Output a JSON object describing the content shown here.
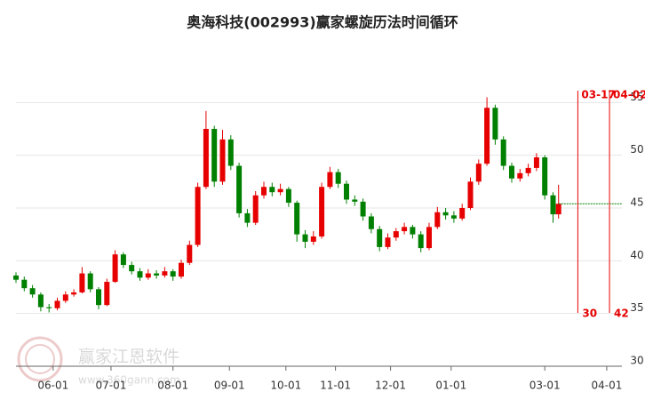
{
  "chart_data": {
    "type": "candlestick",
    "title": "奥海科技(002993)赢家螺旋历法时间循环",
    "watermark": {
      "brand": "赢家江恩软件",
      "url": "www.360gann.com"
    },
    "up_color": "#e60000",
    "down_color": "#008000",
    "x": [
      0,
      3,
      6,
      9,
      12,
      15,
      18,
      21,
      24,
      27,
      30,
      33,
      36,
      39,
      42,
      45,
      48,
      51,
      54,
      57,
      60,
      63,
      66,
      69,
      72,
      75,
      78,
      81,
      84,
      87,
      90,
      93,
      96,
      99,
      102,
      105,
      108,
      111,
      114,
      117,
      120,
      123,
      126,
      129,
      132,
      135,
      138,
      141,
      144,
      147,
      150,
      153,
      156,
      159,
      162,
      165,
      168,
      171,
      174,
      177,
      180,
      183,
      186,
      189,
      192,
      195,
      197
    ],
    "ohlc": [
      [
        38.6,
        38.9,
        37.9,
        38.2
      ],
      [
        38.2,
        38.5,
        37.1,
        37.4
      ],
      [
        37.4,
        37.7,
        36.5,
        36.8
      ],
      [
        36.8,
        37.0,
        35.2,
        35.6
      ],
      [
        35.6,
        35.9,
        35.1,
        35.5
      ],
      [
        35.5,
        36.5,
        35.3,
        36.2
      ],
      [
        36.2,
        37.1,
        36.0,
        36.8
      ],
      [
        36.8,
        37.3,
        36.6,
        37.0
      ],
      [
        37.0,
        39.4,
        36.9,
        38.8
      ],
      [
        38.8,
        39.0,
        37.0,
        37.3
      ],
      [
        37.3,
        37.5,
        35.4,
        35.8
      ],
      [
        35.8,
        38.3,
        35.7,
        38.0
      ],
      [
        38.0,
        41.0,
        37.9,
        40.6
      ],
      [
        40.6,
        40.8,
        39.3,
        39.6
      ],
      [
        39.6,
        39.9,
        38.7,
        39.0
      ],
      [
        39.0,
        39.3,
        38.1,
        38.4
      ],
      [
        38.4,
        39.2,
        38.2,
        38.8
      ],
      [
        38.8,
        39.1,
        38.3,
        38.6
      ],
      [
        38.6,
        39.4,
        38.4,
        39.0
      ],
      [
        39.0,
        39.2,
        38.1,
        38.5
      ],
      [
        38.5,
        40.1,
        38.3,
        39.8
      ],
      [
        39.8,
        41.9,
        39.6,
        41.5
      ],
      [
        41.5,
        47.4,
        41.3,
        47.0
      ],
      [
        47.0,
        54.2,
        46.8,
        52.5
      ],
      [
        52.5,
        52.8,
        47.0,
        47.5
      ],
      [
        47.5,
        52.4,
        47.2,
        51.5
      ],
      [
        51.5,
        51.9,
        48.6,
        49.0
      ],
      [
        49.0,
        49.3,
        44.1,
        44.5
      ],
      [
        44.5,
        44.9,
        43.2,
        43.6
      ],
      [
        43.6,
        46.6,
        43.4,
        46.2
      ],
      [
        46.2,
        47.5,
        45.9,
        47.0
      ],
      [
        47.0,
        47.4,
        46.1,
        46.5
      ],
      [
        46.5,
        47.3,
        46.2,
        46.8
      ],
      [
        46.8,
        47.0,
        45.1,
        45.5
      ],
      [
        45.5,
        45.7,
        41.8,
        42.5
      ],
      [
        42.5,
        42.9,
        41.2,
        41.8
      ],
      [
        41.8,
        42.8,
        41.5,
        42.3
      ],
      [
        42.3,
        47.4,
        42.1,
        47.0
      ],
      [
        47.0,
        48.9,
        46.8,
        48.4
      ],
      [
        48.4,
        48.7,
        46.9,
        47.3
      ],
      [
        47.3,
        47.6,
        45.4,
        45.8
      ],
      [
        45.8,
        46.2,
        45.2,
        45.6
      ],
      [
        45.6,
        45.9,
        43.8,
        44.2
      ],
      [
        44.2,
        44.5,
        42.6,
        43.0
      ],
      [
        43.0,
        43.3,
        40.9,
        41.3
      ],
      [
        41.3,
        42.6,
        41.1,
        42.2
      ],
      [
        42.2,
        43.1,
        41.9,
        42.8
      ],
      [
        42.8,
        43.6,
        42.5,
        43.2
      ],
      [
        43.2,
        43.4,
        42.1,
        42.5
      ],
      [
        42.5,
        42.8,
        40.8,
        41.2
      ],
      [
        41.2,
        43.6,
        41.0,
        43.2
      ],
      [
        43.2,
        45.1,
        43.0,
        44.6
      ],
      [
        44.6,
        45.0,
        43.9,
        44.3
      ],
      [
        44.3,
        44.7,
        43.6,
        44.0
      ],
      [
        44.0,
        45.4,
        43.8,
        45.0
      ],
      [
        45.0,
        47.9,
        44.8,
        47.5
      ],
      [
        47.5,
        49.6,
        47.2,
        49.2
      ],
      [
        49.2,
        55.5,
        49.0,
        54.5
      ],
      [
        54.5,
        54.8,
        51.0,
        51.5
      ],
      [
        51.5,
        51.8,
        48.6,
        49.0
      ],
      [
        49.0,
        49.3,
        47.4,
        47.8
      ],
      [
        47.8,
        48.7,
        47.5,
        48.3
      ],
      [
        48.3,
        49.2,
        48.0,
        48.8
      ],
      [
        48.8,
        50.2,
        48.5,
        49.8
      ],
      [
        49.8,
        50.0,
        45.8,
        46.2
      ],
      [
        46.2,
        46.5,
        43.6,
        44.4
      ],
      [
        44.4,
        47.2,
        44.0,
        45.4
      ]
    ],
    "reference_line": {
      "value": 45.4,
      "color": "#008000"
    },
    "cycle_lines": [
      {
        "x": 204,
        "date": "03-17",
        "count": 30
      },
      {
        "x": 215.5,
        "date": "04-02",
        "count": 42
      }
    ],
    "cycle_color": "#e60000",
    "xlim": [
      0,
      220
    ],
    "xticks": [
      {
        "value": 13.5,
        "label": "06-01"
      },
      {
        "value": 34.5,
        "label": "07-01"
      },
      {
        "value": 57,
        "label": "08-01"
      },
      {
        "value": 77.5,
        "label": "09-01"
      },
      {
        "value": 98,
        "label": "10-01"
      },
      {
        "value": 116,
        "label": "11-01"
      },
      {
        "value": 136,
        "label": "12-01"
      },
      {
        "value": 158,
        "label": "01-01"
      },
      {
        "value": 192,
        "label": "03-01"
      },
      {
        "value": 214.5,
        "label": "04-01"
      }
    ],
    "ylim": [
      30,
      60
    ],
    "yticks": [
      30,
      35,
      40,
      45,
      50,
      55
    ],
    "grid": true
  }
}
